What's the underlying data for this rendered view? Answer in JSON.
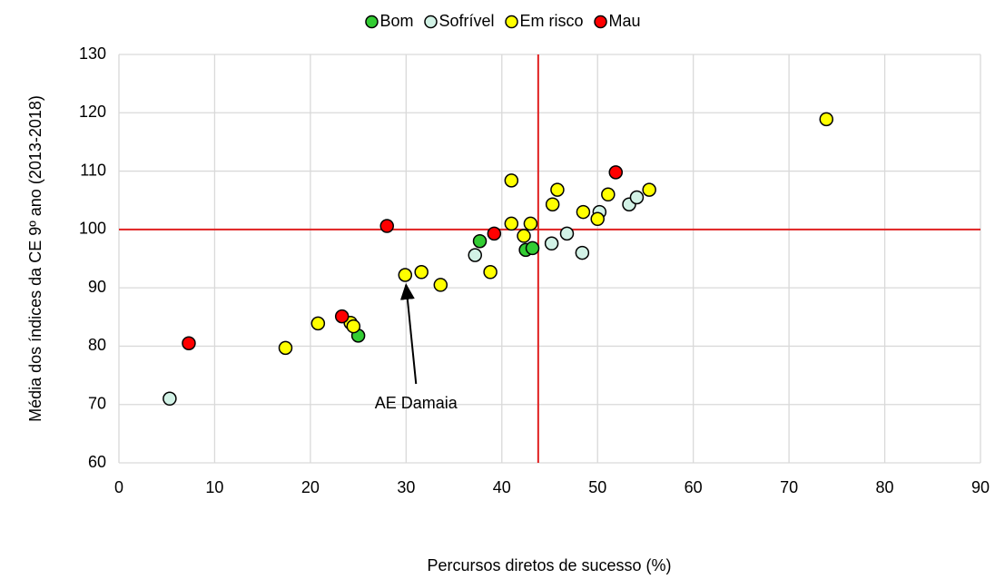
{
  "chart_data": {
    "type": "scatter",
    "xlabel": "Percursos diretos de sucesso (%)",
    "ylabel": "Média dos índices da CE 9º ano (2013-2018)",
    "xlim": [
      0,
      90
    ],
    "xticks": [
      0,
      10,
      20,
      30,
      40,
      50,
      60,
      70,
      80,
      90
    ],
    "ylim": [
      60,
      130
    ],
    "yticks": [
      60,
      70,
      80,
      90,
      100,
      110,
      120,
      130
    ],
    "grid": true,
    "legend": "top",
    "reference_lines": {
      "x": 43.8,
      "y": 100,
      "color": "#e02020"
    },
    "annotation": {
      "text": "AE Damaia",
      "series": 2,
      "index": 4
    },
    "series": [
      {
        "name": "Bom",
        "color": "#33cc33",
        "x": [
          37.7,
          42.5,
          43.2,
          25
        ],
        "values": [
          98,
          96.5,
          96.8,
          81.8
        ]
      },
      {
        "name": "Sofrível",
        "color": "#d2f2e6",
        "x": [
          5.3,
          37.2,
          45.2,
          46.8,
          48.4,
          50.2,
          53.3,
          54.1
        ],
        "values": [
          71,
          95.6,
          97.6,
          99.3,
          96,
          103,
          104.3,
          105.5
        ]
      },
      {
        "name": "Em risco",
        "color": "#ffff00",
        "x": [
          17.4,
          20.8,
          24.2,
          24.5,
          29.9,
          31.6,
          33.6,
          38.8,
          41,
          41,
          42.3,
          43,
          45.3,
          45.8,
          48.5,
          50,
          51.1,
          55.4,
          73.9
        ],
        "values": [
          79.7,
          83.9,
          84,
          83.4,
          92.2,
          92.7,
          90.5,
          92.7,
          101,
          108.4,
          98.9,
          101,
          104.3,
          106.8,
          103,
          101.8,
          106,
          106.8,
          118.9
        ]
      },
      {
        "name": "Mau",
        "color": "#ff0000",
        "x": [
          7.3,
          23.3,
          28,
          39.2,
          51.9
        ],
        "values": [
          80.5,
          85.1,
          100.6,
          99.3,
          109.8
        ]
      }
    ]
  }
}
